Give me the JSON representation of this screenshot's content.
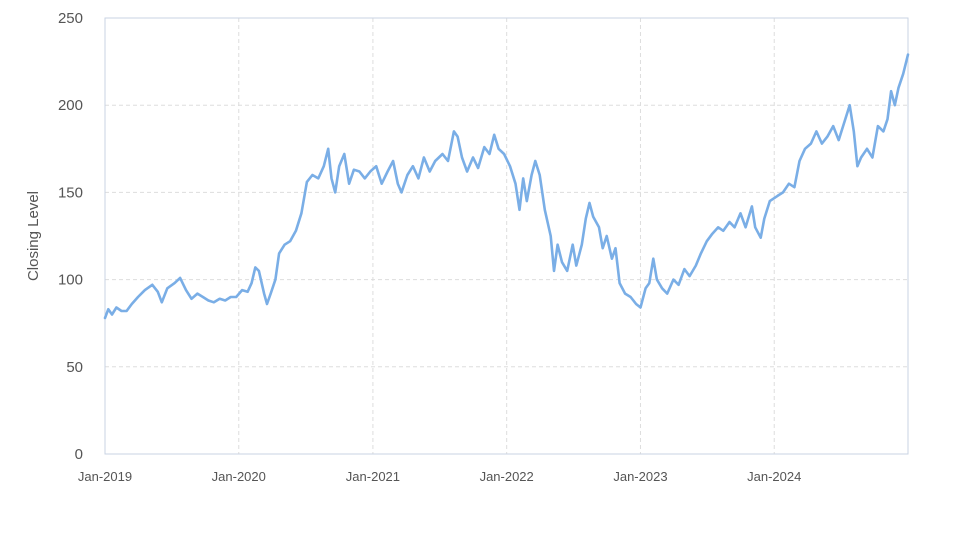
{
  "chart_data": {
    "type": "line",
    "title": "",
    "xlabel": "",
    "ylabel": "Closing Level",
    "ylim": [
      0,
      250
    ],
    "yticks": [
      0,
      50,
      100,
      150,
      200,
      250
    ],
    "xlim": [
      "2019-01-01",
      "2024-12-31"
    ],
    "xticks": [
      "Jan-2019",
      "Jan-2020",
      "Jan-2021",
      "Jan-2022",
      "Jan-2023",
      "Jan-2024"
    ],
    "grid": true,
    "legend": "none",
    "colors": {
      "line": "#7aaee6"
    },
    "series": [
      {
        "points": [
          [
            "2019-01-01",
            78
          ],
          [
            "2019-01-10",
            83
          ],
          [
            "2019-01-20",
            80
          ],
          [
            "2019-02-01",
            84
          ],
          [
            "2019-02-15",
            82
          ],
          [
            "2019-03-01",
            82
          ],
          [
            "2019-03-15",
            86
          ],
          [
            "2019-04-01",
            90
          ],
          [
            "2019-04-20",
            94
          ],
          [
            "2019-05-10",
            97
          ],
          [
            "2019-05-25",
            93
          ],
          [
            "2019-06-05",
            87
          ],
          [
            "2019-06-20",
            95
          ],
          [
            "2019-07-10",
            98
          ],
          [
            "2019-07-25",
            101
          ],
          [
            "2019-08-10",
            94
          ],
          [
            "2019-08-25",
            89
          ],
          [
            "2019-09-10",
            92
          ],
          [
            "2019-09-25",
            90
          ],
          [
            "2019-10-10",
            88
          ],
          [
            "2019-10-25",
            87
          ],
          [
            "2019-11-10",
            89
          ],
          [
            "2019-11-25",
            88
          ],
          [
            "2019-12-10",
            90
          ],
          [
            "2019-12-25",
            90
          ],
          [
            "2020-01-10",
            94
          ],
          [
            "2020-01-25",
            93
          ],
          [
            "2020-02-05",
            98
          ],
          [
            "2020-02-15",
            107
          ],
          [
            "2020-02-25",
            105
          ],
          [
            "2020-03-10",
            92
          ],
          [
            "2020-03-18",
            86
          ],
          [
            "2020-03-28",
            92
          ],
          [
            "2020-04-10",
            100
          ],
          [
            "2020-04-20",
            115
          ],
          [
            "2020-05-05",
            120
          ],
          [
            "2020-05-20",
            122
          ],
          [
            "2020-06-05",
            128
          ],
          [
            "2020-06-20",
            138
          ],
          [
            "2020-07-05",
            156
          ],
          [
            "2020-07-20",
            160
          ],
          [
            "2020-08-05",
            158
          ],
          [
            "2020-08-20",
            165
          ],
          [
            "2020-09-01",
            175
          ],
          [
            "2020-09-10",
            158
          ],
          [
            "2020-09-20",
            150
          ],
          [
            "2020-10-01",
            165
          ],
          [
            "2020-10-15",
            172
          ],
          [
            "2020-10-28",
            155
          ],
          [
            "2020-11-10",
            163
          ],
          [
            "2020-11-25",
            162
          ],
          [
            "2020-12-10",
            158
          ],
          [
            "2020-12-25",
            162
          ],
          [
            "2021-01-10",
            165
          ],
          [
            "2021-01-25",
            155
          ],
          [
            "2021-02-10",
            162
          ],
          [
            "2021-02-25",
            168
          ],
          [
            "2021-03-10",
            155
          ],
          [
            "2021-03-20",
            150
          ],
          [
            "2021-04-05",
            160
          ],
          [
            "2021-04-20",
            165
          ],
          [
            "2021-05-05",
            158
          ],
          [
            "2021-05-20",
            170
          ],
          [
            "2021-06-05",
            162
          ],
          [
            "2021-06-20",
            168
          ],
          [
            "2021-07-10",
            172
          ],
          [
            "2021-07-25",
            168
          ],
          [
            "2021-08-10",
            185
          ],
          [
            "2021-08-20",
            182
          ],
          [
            "2021-09-01",
            170
          ],
          [
            "2021-09-15",
            162
          ],
          [
            "2021-10-01",
            170
          ],
          [
            "2021-10-15",
            164
          ],
          [
            "2021-11-01",
            176
          ],
          [
            "2021-11-15",
            172
          ],
          [
            "2021-11-28",
            183
          ],
          [
            "2021-12-10",
            175
          ],
          [
            "2021-12-25",
            172
          ],
          [
            "2022-01-10",
            165
          ],
          [
            "2022-01-25",
            155
          ],
          [
            "2022-02-05",
            140
          ],
          [
            "2022-02-15",
            158
          ],
          [
            "2022-02-25",
            145
          ],
          [
            "2022-03-10",
            160
          ],
          [
            "2022-03-20",
            168
          ],
          [
            "2022-04-01",
            160
          ],
          [
            "2022-04-15",
            140
          ],
          [
            "2022-05-01",
            125
          ],
          [
            "2022-05-10",
            105
          ],
          [
            "2022-05-20",
            120
          ],
          [
            "2022-06-01",
            110
          ],
          [
            "2022-06-15",
            105
          ],
          [
            "2022-06-30",
            120
          ],
          [
            "2022-07-10",
            108
          ],
          [
            "2022-07-25",
            120
          ],
          [
            "2022-08-05",
            135
          ],
          [
            "2022-08-15",
            144
          ],
          [
            "2022-08-25",
            136
          ],
          [
            "2022-09-10",
            130
          ],
          [
            "2022-09-20",
            118
          ],
          [
            "2022-10-01",
            125
          ],
          [
            "2022-10-15",
            112
          ],
          [
            "2022-10-25",
            118
          ],
          [
            "2022-11-05",
            98
          ],
          [
            "2022-11-20",
            92
          ],
          [
            "2022-12-05",
            90
          ],
          [
            "2022-12-20",
            86
          ],
          [
            "2023-01-01",
            84
          ],
          [
            "2023-01-15",
            95
          ],
          [
            "2023-01-25",
            98
          ],
          [
            "2023-02-05",
            112
          ],
          [
            "2023-02-15",
            100
          ],
          [
            "2023-03-01",
            95
          ],
          [
            "2023-03-15",
            92
          ],
          [
            "2023-04-01",
            100
          ],
          [
            "2023-04-15",
            97
          ],
          [
            "2023-05-01",
            106
          ],
          [
            "2023-05-15",
            102
          ],
          [
            "2023-06-01",
            108
          ],
          [
            "2023-06-15",
            115
          ],
          [
            "2023-07-01",
            122
          ],
          [
            "2023-07-15",
            126
          ],
          [
            "2023-08-01",
            130
          ],
          [
            "2023-08-15",
            128
          ],
          [
            "2023-09-01",
            133
          ],
          [
            "2023-09-15",
            130
          ],
          [
            "2023-10-01",
            138
          ],
          [
            "2023-10-15",
            130
          ],
          [
            "2023-11-01",
            142
          ],
          [
            "2023-11-10",
            130
          ],
          [
            "2023-11-25",
            124
          ],
          [
            "2023-12-05",
            135
          ],
          [
            "2023-12-20",
            145
          ],
          [
            "2024-01-10",
            148
          ],
          [
            "2024-01-25",
            150
          ],
          [
            "2024-02-10",
            155
          ],
          [
            "2024-02-25",
            153
          ],
          [
            "2024-03-10",
            168
          ],
          [
            "2024-03-25",
            175
          ],
          [
            "2024-04-10",
            178
          ],
          [
            "2024-04-25",
            185
          ],
          [
            "2024-05-10",
            178
          ],
          [
            "2024-05-25",
            182
          ],
          [
            "2024-06-10",
            188
          ],
          [
            "2024-06-25",
            180
          ],
          [
            "2024-07-10",
            190
          ],
          [
            "2024-07-25",
            200
          ],
          [
            "2024-08-05",
            185
          ],
          [
            "2024-08-15",
            165
          ],
          [
            "2024-08-25",
            170
          ],
          [
            "2024-09-10",
            175
          ],
          [
            "2024-09-25",
            170
          ],
          [
            "2024-10-10",
            188
          ],
          [
            "2024-10-25",
            185
          ],
          [
            "2024-11-05",
            192
          ],
          [
            "2024-11-15",
            208
          ],
          [
            "2024-11-25",
            200
          ],
          [
            "2024-12-05",
            210
          ],
          [
            "2024-12-18",
            218
          ],
          [
            "2024-12-31",
            229
          ]
        ]
      }
    ]
  }
}
